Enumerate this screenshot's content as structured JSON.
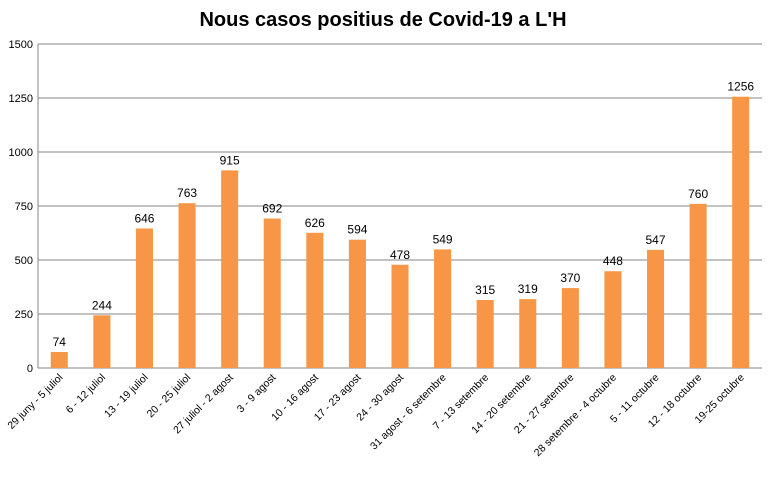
{
  "chart_data": {
    "type": "bar",
    "title": "Nous casos positius de Covid-19 a L'H",
    "categories": [
      "29 juny - 5 juliol",
      "6 - 12 juliol",
      "13 - 19 juliol",
      "20 - 25 juliol",
      "27 juliol - 2 agost",
      "3 - 9 agost",
      "10 - 16 agost",
      "17 - 23 agost",
      "24 - 30 agost",
      "31 agost - 6 setembre",
      "7 - 13 setembre",
      "14 - 20 setembre",
      "21 - 27 setembre",
      "28 setembre - 4 octubre",
      "5 - 11 octubre",
      "12 - 18 octubre",
      "19-25 octubre"
    ],
    "values": [
      74,
      244,
      646,
      763,
      915,
      692,
      626,
      594,
      478,
      549,
      315,
      319,
      370,
      448,
      547,
      760,
      1256
    ],
    "ylim": [
      0,
      1500
    ],
    "yticks": [
      "0",
      "250",
      "500",
      "750",
      "1000",
      "1250",
      "1500"
    ],
    "grid": true,
    "bar_color": "#F79646"
  }
}
